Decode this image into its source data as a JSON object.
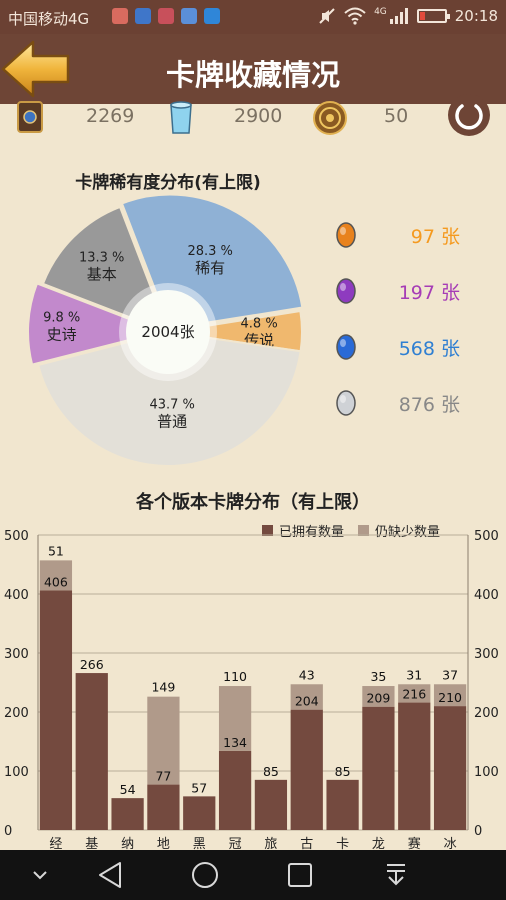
{
  "status_bar": {
    "carrier": "中国移动4G",
    "signal_label": "4G",
    "time": "20:18",
    "battery_level": 0.2
  },
  "header": {
    "title": "卡牌收藏情况"
  },
  "resources": [
    {
      "icon": "card-pack-icon",
      "value": "2269"
    },
    {
      "icon": "arcane-dust-icon",
      "value": "2900"
    },
    {
      "icon": "gold-coin-icon",
      "value": "50"
    }
  ],
  "rarity": {
    "title": "卡牌稀有度分布(有上限)",
    "center_label": "2004张",
    "slices": [
      {
        "name": "稀有",
        "percent_label": "28.3 %",
        "value": 28.3,
        "color": "#8fb1d5"
      },
      {
        "name": "传说",
        "percent_label": "4.8 %",
        "value": 4.8,
        "color": "#f0b86e"
      },
      {
        "name": "普通",
        "percent_label": "43.7 %",
        "value": 43.7,
        "color": "#e3e0d8"
      },
      {
        "name": "史诗",
        "percent_label": "9.8 %",
        "value": 9.8,
        "color": "#c289cc"
      },
      {
        "name": "基本",
        "percent_label": "13.3 %",
        "value": 13.3,
        "color": "#999999"
      }
    ],
    "legend": [
      {
        "gem": "legendary-gem-icon",
        "count": "97 张",
        "color": "#f59a1f",
        "gem_color": "#e8821d"
      },
      {
        "gem": "epic-gem-icon",
        "count": "197 张",
        "color": "#a63cb6",
        "gem_color": "#8e3bbf"
      },
      {
        "gem": "rare-gem-icon",
        "count": "568 张",
        "color": "#2f7fd2",
        "gem_color": "#2a6ad6"
      },
      {
        "gem": "common-gem-icon",
        "count": "876 张",
        "color": "#888888",
        "gem_color": "#cfd2d6"
      }
    ]
  },
  "sets": {
    "title": "各个版本卡牌分布（有上限）",
    "legend_owned": "已拥有数量",
    "legend_missing": "仍缺少数量",
    "owned_color": "#744a3f",
    "missing_color": "#b09a8a"
  },
  "chart_data": {
    "type": "bar",
    "stacked": true,
    "title": "各个版本卡牌分布（有上限）",
    "categories": [
      "经",
      "基",
      "纳",
      "地",
      "黑",
      "冠",
      "旅",
      "古",
      "卡",
      "龙",
      "赛",
      "冰"
    ],
    "series": [
      {
        "name": "已拥有数量",
        "values": [
          406,
          266,
          54,
          77,
          57,
          134,
          85,
          204,
          85,
          209,
          216,
          210
        ]
      },
      {
        "name": "仍缺少数量",
        "values": [
          51,
          0,
          0,
          149,
          0,
          110,
          0,
          43,
          0,
          35,
          31,
          37
        ]
      }
    ],
    "owned_labels": [
      "406",
      "266",
      "54",
      "77",
      "57",
      "134",
      "85",
      "204",
      "85",
      "209",
      "216",
      "210"
    ],
    "missing_labels": [
      "51",
      "",
      "",
      "149",
      "",
      "110",
      "",
      "43",
      "",
      "35",
      "31",
      "37"
    ],
    "ylim": [
      0,
      500
    ],
    "yticks": [
      0,
      100,
      200,
      300,
      400,
      500
    ],
    "grid": true,
    "legend_position": "top-right"
  }
}
